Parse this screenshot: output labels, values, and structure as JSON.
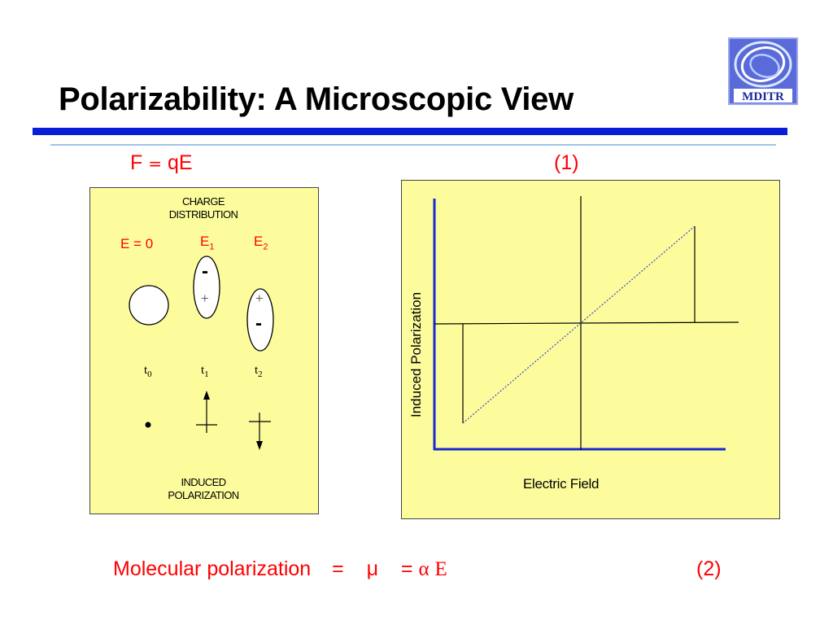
{
  "slide": {
    "title": "Polarizability: A Microscopic View",
    "logo_text": "MDITR",
    "accent_color": "#0a1ed8",
    "panel_color": "#fcfc9c"
  },
  "equation_top": {
    "lhs": "F",
    "op": "=",
    "rhs": "qE",
    "number": "(1)"
  },
  "left_panel": {
    "header_line1": "CHARGE",
    "header_line2": "DISTRIBUTION",
    "field_zero": "E = 0",
    "field_1_base": "E",
    "field_1_sub": "1",
    "field_2_base": "E",
    "field_2_sub": "2",
    "minus_sign": "-",
    "plus_sign": "+",
    "time_base": "t",
    "time_0_sub": "0",
    "time_1_sub": "1",
    "time_2_sub": "2",
    "footer_line1": "INDUCED",
    "footer_line2": "POLARIZATION"
  },
  "right_panel": {
    "y_axis_label": "Induced Polarization",
    "x_axis_label": "Electric Field"
  },
  "equation_bottom": {
    "text": "Molecular polarization",
    "eq1": "=",
    "mu": "μ",
    "eq2": "=",
    "alpha": "α",
    "field": "E",
    "number": "(2)"
  }
}
